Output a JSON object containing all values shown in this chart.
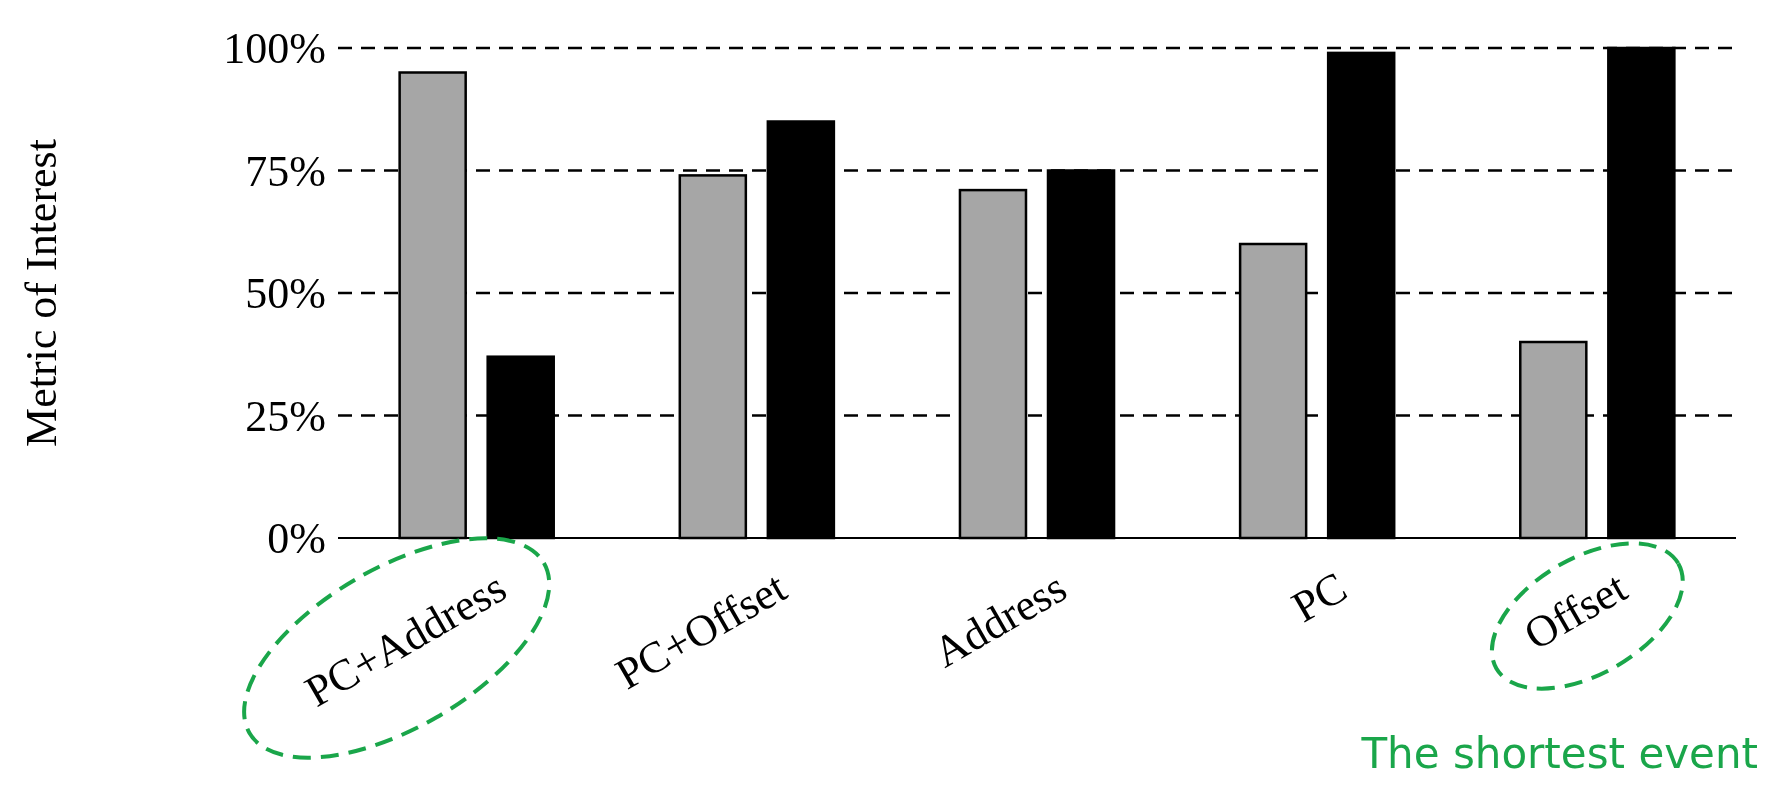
{
  "chart_data": {
    "type": "bar",
    "ylabel": "Metric of Interest",
    "categories": [
      "PC+Address",
      "PC+Offset",
      "Address",
      "PC",
      "Offset"
    ],
    "series": [
      {
        "color": "#a6a6a6",
        "values": [
          95,
          74,
          71,
          60,
          40
        ]
      },
      {
        "color": "#000000",
        "values": [
          37,
          85,
          75,
          99,
          100
        ]
      }
    ],
    "ylim": [
      0,
      100
    ],
    "yticks": [
      {
        "value": 0,
        "label": "0%"
      },
      {
        "value": 25,
        "label": "25%"
      },
      {
        "value": 50,
        "label": "50%"
      },
      {
        "value": 75,
        "label": "75%"
      },
      {
        "value": 100,
        "label": "100%"
      }
    ],
    "grid": "y",
    "annotations": [
      "The shortest event"
    ]
  }
}
